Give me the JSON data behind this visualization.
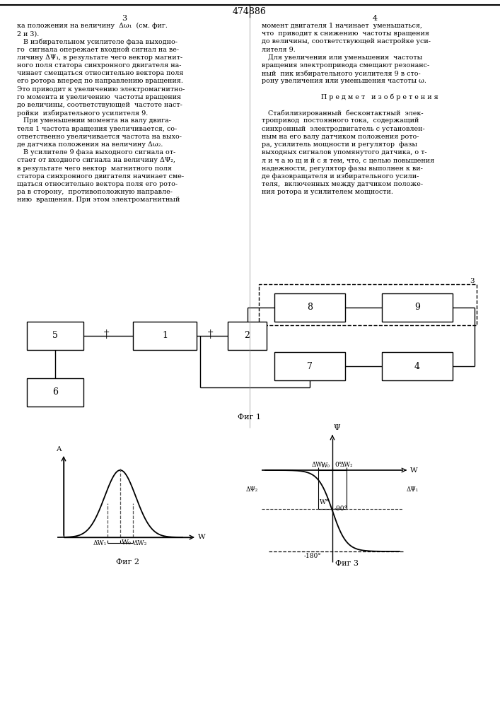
{
  "title": "474886",
  "page_col_left": "3",
  "page_col_right": "4",
  "text_left": [
    "ка положения на величину  Δω₁  (см. фиг.",
    "2 и 3).",
    "   В избирательном усилителе фаза выходно-",
    "го  сигнала опережает входной сигнал на ве-",
    "личину ΔΨ₁, в результате чего вектор магнит-",
    "ного поля статора синхронного двигателя на-",
    "чинает смещаться относительно вектора поля",
    "его ротора вперед по направлению вращения.",
    "Это приводит к увеличению электромагнитно-",
    "го момента и увеличению  частоты вращения",
    "до величины, соответствующей  частоте наст-",
    "ройки  избирательного усилителя 9.",
    "   При уменьшении момента на валу двига-",
    "теля 1 частота вращения увеличивается, со-",
    "ответственно увеличивается частота на выхо-",
    "де датчика положения на величину Δω₂.",
    "   В усилителе 9 фаза выходного сигнала от-",
    "стает от входного сигнала на величину ΔΨ₂,",
    "в результате чего вектор  магнитного поля",
    "статора синхронного двигателя начинает сме-",
    "щаться относительно вектора поля его рото-",
    "ра в сторону,  противоположную направле-",
    "нию  вращения. При этом электромагнитный"
  ],
  "text_right": [
    "момент двигателя 1 начинает  уменьшаться,",
    "что  приводит к снижению  частоты вращения",
    "до величины, соответствующей настройке уси-",
    "лителя 9.",
    "   Для увеличения или уменьшения  частоты",
    "вращения электропривода смещают резонанс-",
    "ный  пик избирательного усилителя 9 в сто-",
    "рону увеличения или уменьшения частоты ω.",
    "",
    "        П р е д м е т   и з о б р е т е н и я",
    "",
    "   Стабилизированный  бесконтактный  элек-",
    "тропривод  постоянного тока,  содержащий",
    "синхронный  электродвигатель с установлен-",
    "ным на его валу датчиком положения рото-",
    "ра, усилитель мощности и регулятор  фазы",
    "выходных сигналов упомянутого датчика, о т-",
    "л и ч а ю щ и й с я тем, что, с целью повышения",
    "надежности, регулятор фазы выполнен к ви-",
    "де фазовращателя и избирательного усили-",
    "теля,  включенных между датчиком положе-",
    "ния ротора и усилителем мощности."
  ],
  "fig1_caption": "Фиг 1",
  "fig2_caption": "Фиг 2",
  "fig3_caption": "Фиг 3",
  "background_color": "#ffffff",
  "line_color": "#000000",
  "text_color": "#000000"
}
